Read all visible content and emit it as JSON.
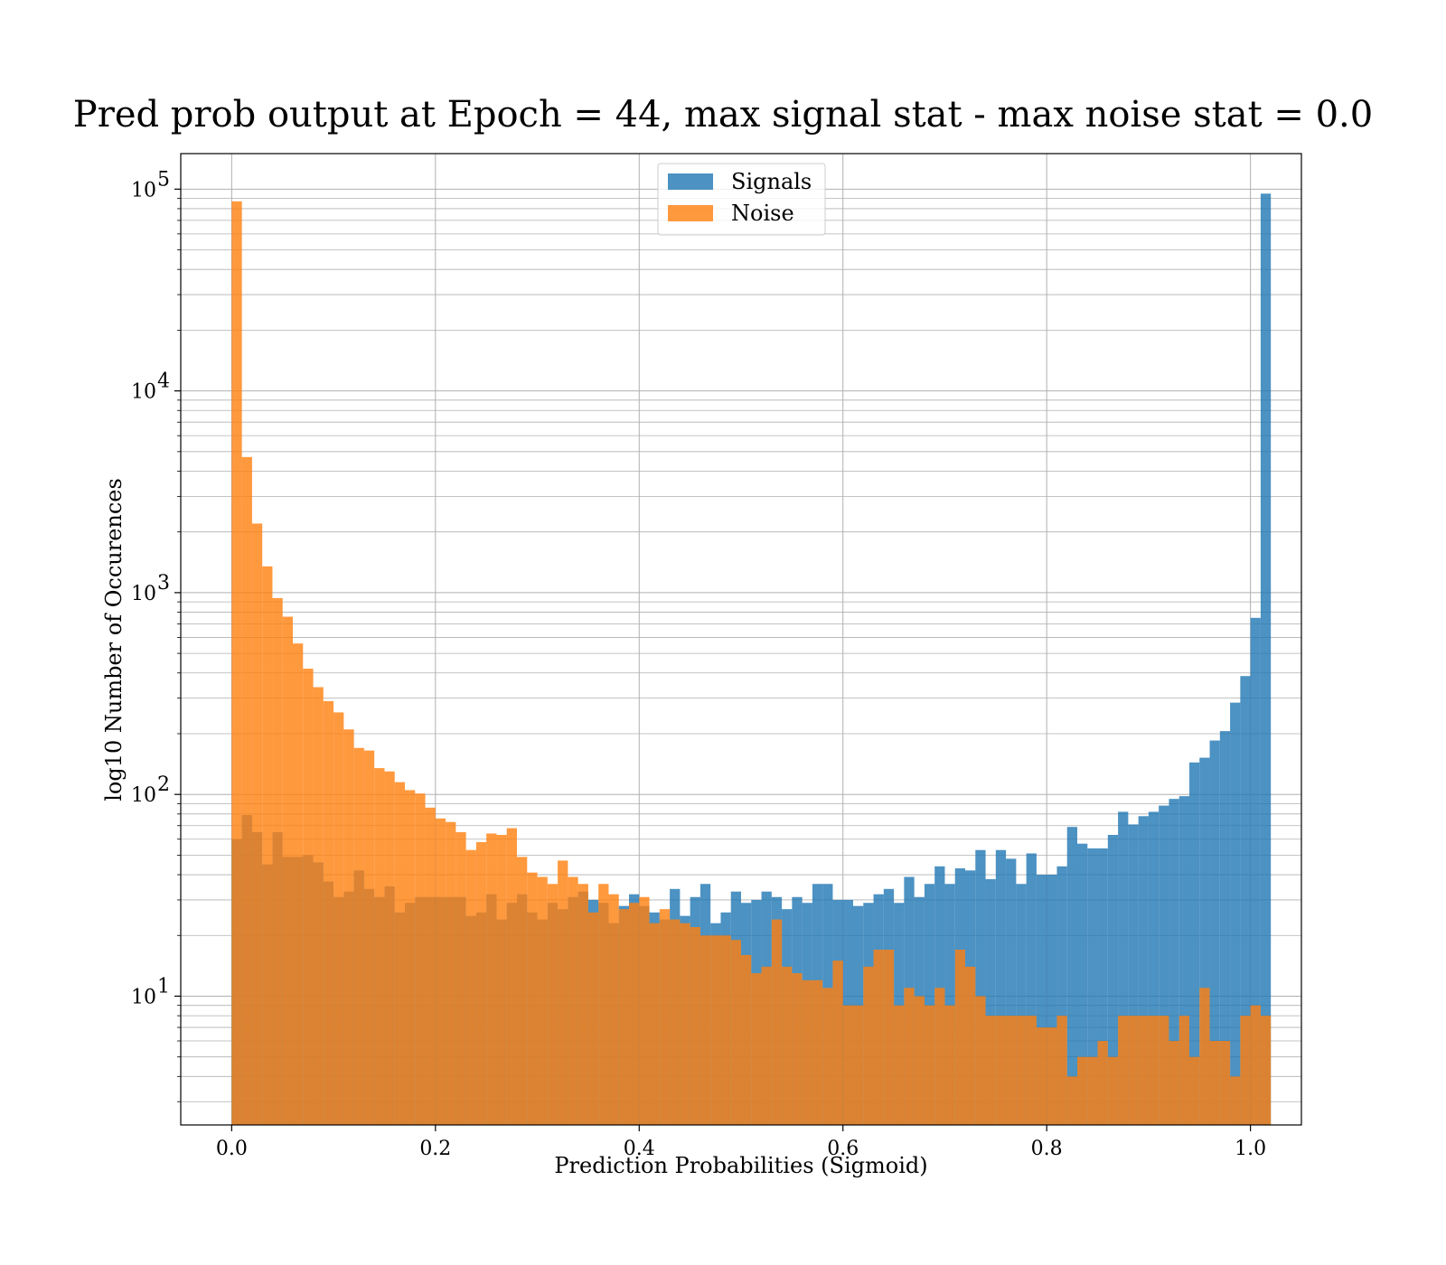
{
  "chart_data": {
    "type": "bar",
    "title": "Pred prob output at Epoch = 44, max signal stat - max noise stat = 0.0",
    "xlabel": "Prediction Probabilities (Sigmoid)",
    "ylabel": "log10 Number of Occurences",
    "xlim": [
      -0.05,
      1.05
    ],
    "ylim": [
      2.3,
      150000
    ],
    "yscale": "log",
    "xticks": [
      0.0,
      0.2,
      0.4,
      0.6,
      0.8,
      1.0
    ],
    "xtick_labels": [
      "0.0",
      "0.2",
      "0.4",
      "0.6",
      "0.8",
      "1.0"
    ],
    "yticks": [
      10,
      100,
      1000,
      10000,
      100000
    ],
    "ytick_base": "10",
    "ytick_exponents": [
      "1",
      "2",
      "3",
      "4",
      "5"
    ],
    "grid": true,
    "legend_position": "top-center",
    "bin_width": 0.01,
    "x_start": 0.0,
    "series": [
      {
        "name": "Signals",
        "color": "#1f77b4",
        "values": [
          60,
          79,
          65,
          45,
          65,
          49,
          49,
          50,
          46,
          37,
          31,
          33,
          42,
          34,
          31,
          35,
          26,
          29,
          31,
          31,
          31,
          31,
          31,
          25,
          26,
          32,
          24,
          29,
          32,
          26,
          24,
          29,
          27,
          31,
          33,
          30,
          29,
          23,
          28,
          32,
          28,
          26,
          24,
          34,
          25,
          31,
          36,
          23,
          26,
          33,
          29,
          30,
          33,
          31,
          27,
          31,
          29,
          36,
          36,
          30,
          30,
          28,
          29,
          32,
          34,
          29,
          39,
          31,
          36,
          44,
          36,
          43,
          42,
          53,
          38,
          53,
          48,
          36,
          51,
          40,
          40,
          44,
          69,
          57,
          54,
          54,
          63,
          82,
          71,
          78,
          82,
          88,
          95,
          98,
          144,
          152,
          185,
          206,
          285,
          386,
          750,
          95000
        ]
      },
      {
        "name": "Noise",
        "color": "#ff7f0e",
        "values": [
          87000,
          4700,
          2200,
          1350,
          940,
          760,
          560,
          420,
          340,
          290,
          255,
          210,
          170,
          165,
          135,
          130,
          115,
          105,
          101,
          86,
          76,
          73,
          65,
          53,
          58,
          64,
          63,
          68,
          49,
          41,
          39,
          36,
          47,
          39,
          36,
          26,
          36,
          32,
          27,
          29,
          31,
          23,
          27,
          24,
          23,
          22,
          20,
          20,
          20,
          19,
          16,
          13,
          14,
          24,
          14,
          13,
          12,
          12,
          11,
          15,
          9,
          9,
          14,
          17,
          17,
          9,
          11,
          10,
          9,
          11,
          9,
          17,
          14,
          10,
          8,
          8,
          8,
          8,
          8,
          7,
          7,
          8,
          4,
          5,
          5,
          6,
          5,
          8,
          8,
          8,
          8,
          8,
          6,
          8,
          5,
          11,
          6,
          6,
          4,
          8,
          9,
          8
        ]
      }
    ]
  }
}
